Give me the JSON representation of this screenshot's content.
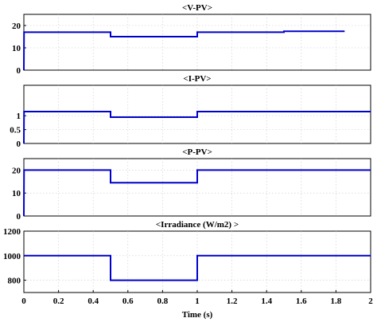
{
  "figure": {
    "xlabel": "Time (s)"
  },
  "chart_data": [
    {
      "type": "line",
      "title": "<V-PV>",
      "xlim": [
        0,
        2
      ],
      "ylim": [
        0,
        25
      ],
      "yticks": [
        0,
        10,
        20
      ],
      "xticks": [],
      "grid": true,
      "series": [
        {
          "color": "#0000cc",
          "x": [
            0,
            0.001,
            0.5,
            0.5,
            1.0,
            1.0,
            1.5,
            1.5,
            1.85
          ],
          "y": [
            0,
            17,
            17,
            15,
            15,
            17,
            17,
            17.4,
            17.4
          ]
        }
      ]
    },
    {
      "type": "line",
      "title": "<I-PV>",
      "xlim": [
        0,
        2
      ],
      "ylim": [
        0,
        2.1
      ],
      "yticks": [
        0,
        0.5,
        1
      ],
      "xticks": [],
      "grid": true,
      "series": [
        {
          "color": "#0000cc",
          "x": [
            0,
            0.001,
            0.5,
            0.5,
            1.0,
            1.0,
            2.0
          ],
          "y": [
            0,
            1.15,
            1.15,
            0.95,
            0.95,
            1.15,
            1.15
          ]
        }
      ]
    },
    {
      "type": "line",
      "title": "<P-PV>",
      "xlim": [
        0,
        2
      ],
      "ylim": [
        0,
        25
      ],
      "yticks": [
        0,
        10,
        20
      ],
      "xticks": [],
      "grid": true,
      "series": [
        {
          "color": "#0000cc",
          "x": [
            0,
            0.001,
            0.5,
            0.5,
            1.0,
            1.0,
            2.0
          ],
          "y": [
            0,
            20,
            20,
            14.5,
            14.5,
            20,
            20
          ]
        }
      ]
    },
    {
      "type": "line",
      "title": "<Irradiance (W/m2) >",
      "xlim": [
        0,
        2
      ],
      "ylim": [
        700,
        1200
      ],
      "yticks": [
        800,
        1000,
        1200
      ],
      "xticks": [
        0,
        0.2,
        0.4,
        0.6,
        0.8,
        1,
        1.2,
        1.4,
        1.6,
        1.8,
        2
      ],
      "grid": true,
      "series": [
        {
          "color": "#0000cc",
          "x": [
            0,
            0.5,
            0.5,
            1.0,
            1.0,
            2.0
          ],
          "y": [
            1000,
            1000,
            800,
            800,
            1000,
            1000
          ]
        }
      ]
    }
  ]
}
